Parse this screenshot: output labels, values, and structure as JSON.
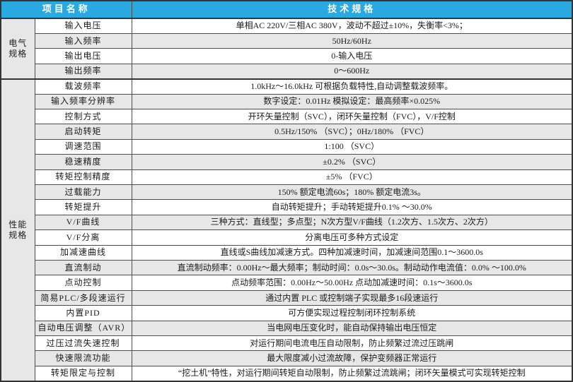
{
  "table": {
    "header": {
      "item_col": "项目名称",
      "spec_col": "技术规格"
    },
    "colors": {
      "header_bg": "#29A9E0",
      "header_text": "#FFFFFF",
      "stripe": "#E7E7E7",
      "border": "#4D4D4D"
    },
    "groups": [
      {
        "name": "电气规格",
        "rows": [
          {
            "label": "输入电压",
            "value": "单相AC 220V/三相AC 380V，波动不超过±10%，失衡率<3%；",
            "shaded": false
          },
          {
            "label": "输入频率",
            "value": "50Hz/60Hz",
            "shaded": true
          },
          {
            "label": "输出电压",
            "value": "0-输入电压",
            "shaded": false
          },
          {
            "label": "输出频率",
            "value": "0～600Hz",
            "shaded": true
          }
        ]
      },
      {
        "name": "性能规格",
        "rows": [
          {
            "label": "载波频率",
            "value": "1.0kHz～16.0kHz 可根据负载特性,自动调整载波频率。",
            "shaded": false
          },
          {
            "label": "输入频率分辨率",
            "value": "数字设定：0.01Hz 模拟设定：最高频率×0.025%",
            "shaded": true
          },
          {
            "label": "控制方式",
            "value": "开环矢量控制（SVC），闭环矢量控制（FVC），V/F控制",
            "shaded": false
          },
          {
            "label": "启动转矩",
            "value": "0.5Hz/150% （SVC）；0Hz/180% （FVC）",
            "shaded": true
          },
          {
            "label": "调速范围",
            "value": "1:100 （SVC）",
            "shaded": false
          },
          {
            "label": "稳速精度",
            "value": "±0.2% （SVC）",
            "shaded": true
          },
          {
            "label": "转矩控制精度",
            "value": "±5% （FVC）",
            "shaded": false
          },
          {
            "label": "过载能力",
            "value": "150% 额定电流60s；180% 额定电流3s。",
            "shaded": true
          },
          {
            "label": "转矩提升",
            "value": "自动转矩提升；手动转矩提升0.1% ～30.0%",
            "shaded": false
          },
          {
            "label": "V/F曲线",
            "value": "三种方式：直线型；多点型；N次方型V/F曲线（1.2次方、1.5次方、2次方）",
            "shaded": true
          },
          {
            "label": "V/F分离",
            "value": "分离电压可多种方式设定",
            "shaded": false
          },
          {
            "label": "加减速曲线",
            "value": "直线或S曲线加减速方式。四种加减速时间，加减速间范围0.1～3600.0s",
            "shaded": false
          },
          {
            "label": "直流制动",
            "value": "直流制动频率：0.00Hz～最大频率；制动时间：0.0s～30.0s。制动动作电流值：0.0% ～100.0%",
            "shaded": true
          },
          {
            "label": "点动控制",
            "value": "点动频率范围：0.00Hz～50.00Hz 点动加减速时间：0.1s～3600.0s",
            "shaded": false
          },
          {
            "label": "简易PLC/多段速运行",
            "value": "通过内置 PLC 或控制端子实现最多16段速运行",
            "shaded": true
          },
          {
            "label": "内置PID",
            "value": "可方便实现过程控制闭环控制系统",
            "shaded": false
          },
          {
            "label": "自动电压调整（AVR）",
            "value": "当电网电压变化时，能自动保持输出电压恒定",
            "shaded": true
          },
          {
            "label": "过压过流失速控制",
            "value": "对运行期间电流电压自动限制，防止频繁过流过压跳闸",
            "shaded": false
          },
          {
            "label": "快速限流功能",
            "value": "最大限度减小过流故障，保护变频器正常运行",
            "shaded": true
          },
          {
            "label": "转矩限定与控制",
            "value": "“挖土机”特性，对运行期间转矩自动限制，防止频繁过流跳闸；闭环矢量模式可实现转矩控制",
            "shaded": false
          }
        ]
      }
    ]
  }
}
